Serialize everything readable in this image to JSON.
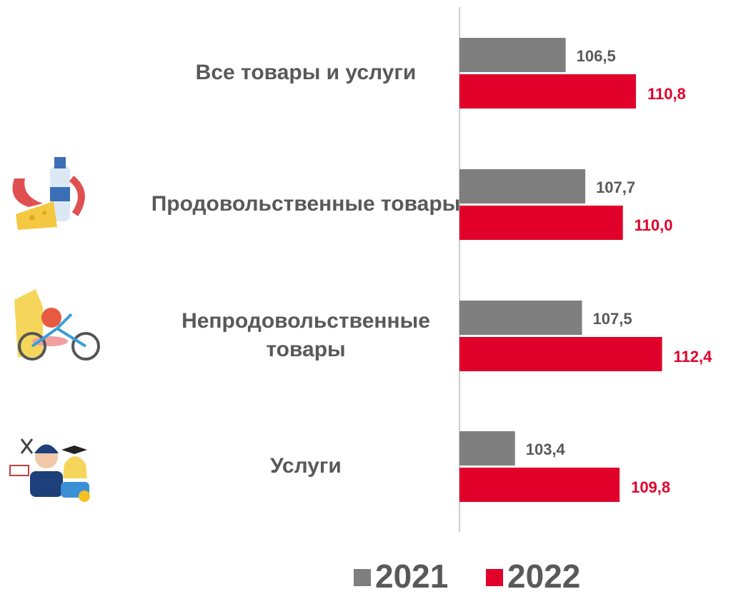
{
  "chart_data": {
    "type": "hbar",
    "categories": [
      "Все товары и услуги",
      "Продовольственные товары",
      "Непродовольственные товары",
      "Услуги"
    ],
    "series": [
      {
        "name": "2021",
        "color": "#7f7f7f",
        "values": [
          106.5,
          107.7,
          107.5,
          103.4
        ],
        "value_labels": [
          "106,5",
          "107,7",
          "107,5",
          "103,4"
        ]
      },
      {
        "name": "2022",
        "color": "#e0002a",
        "values": [
          110.8,
          110.0,
          112.4,
          109.8
        ],
        "value_labels": [
          "110,8",
          "110,0",
          "112,4",
          "109,8"
        ]
      }
    ],
    "xlim": [
      100,
      115
    ]
  }
}
